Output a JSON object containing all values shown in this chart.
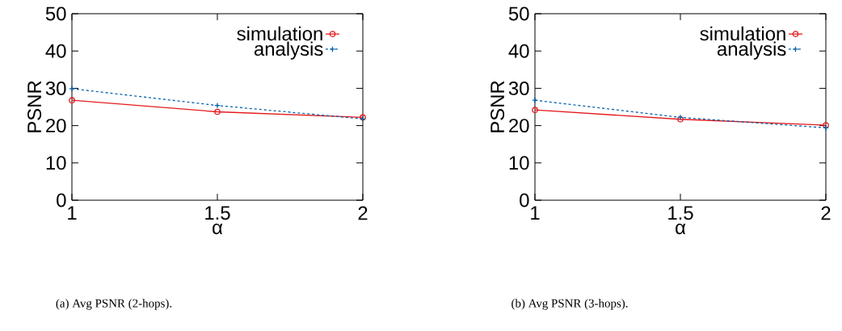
{
  "chart_data": [
    {
      "type": "line",
      "x": [
        1,
        1.5,
        2
      ],
      "xlim": [
        1,
        2
      ],
      "xticks": [
        1,
        1.5,
        2
      ],
      "ylim": [
        0,
        50
      ],
      "yticks": [
        0,
        10,
        20,
        30,
        40,
        50
      ],
      "xlabel": "α",
      "ylabel": "PSNR",
      "legend": "top right",
      "series": [
        {
          "name": "simulation",
          "color": "#e41a1c",
          "values": [
            26.8,
            23.7,
            22.2
          ],
          "marker": "circle",
          "line_style": "solid"
        },
        {
          "name": "analysis",
          "color": "#0060ad",
          "values": [
            29.9,
            25.4,
            21.8
          ],
          "marker": "cross",
          "line_style": "dashed"
        }
      ],
      "annotations": [
        "(a)  Avg PSNR (2-hops)."
      ]
    },
    {
      "type": "line",
      "x": [
        1,
        1.5,
        2
      ],
      "xlim": [
        1,
        2
      ],
      "xticks": [
        1,
        1.5,
        2
      ],
      "ylim": [
        0,
        50
      ],
      "yticks": [
        0,
        10,
        20,
        30,
        40,
        50
      ],
      "xlabel": "α",
      "ylabel": "PSNR",
      "legend": "top right",
      "series": [
        {
          "name": "simulation",
          "color": "#e41a1c",
          "values": [
            24.2,
            21.7,
            20.1
          ],
          "marker": "circle",
          "line_style": "solid"
        },
        {
          "name": "analysis",
          "color": "#0060ad",
          "values": [
            26.8,
            22.2,
            19.4
          ],
          "marker": "cross",
          "line_style": "dashed"
        }
      ],
      "annotations": [
        "(b)  Avg PSNR (3-hops)."
      ]
    }
  ]
}
